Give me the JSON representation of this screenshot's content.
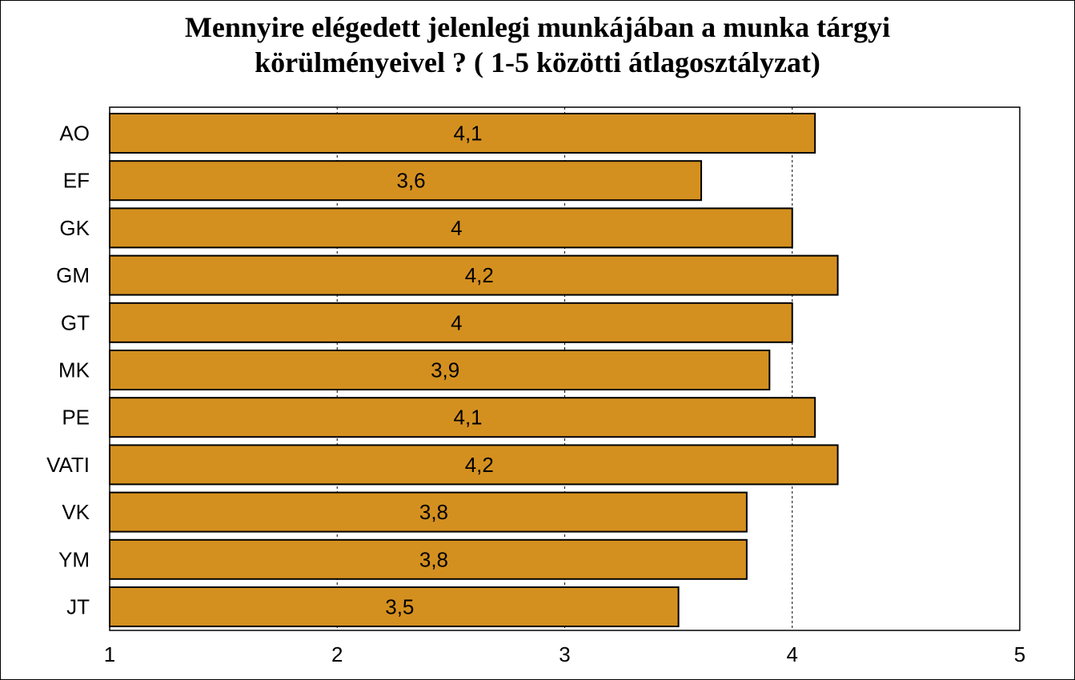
{
  "chart_data": {
    "type": "bar",
    "orientation": "horizontal",
    "title_lines": [
      "Mennyire elégedett jelenlegi munkájában a munka tárgyi",
      "körülményeivel ? ( 1-5 közötti átlagosztályzat)"
    ],
    "categories": [
      "AO",
      "EF",
      "GK",
      "GM",
      "GT",
      "MK",
      "PE",
      "VATI",
      "VK",
      "YM",
      "JT"
    ],
    "values": [
      4.1,
      3.6,
      4.0,
      4.2,
      4.0,
      3.9,
      4.1,
      4.2,
      3.8,
      3.8,
      3.5
    ],
    "data_labels": [
      "4,1",
      "3,6",
      "4",
      "4,2",
      "4",
      "3,9",
      "4,1",
      "4,2",
      "3,8",
      "3,8",
      "3,5"
    ],
    "xlim": [
      1,
      5
    ],
    "xticks": [
      1,
      2,
      3,
      4,
      5
    ],
    "xtick_labels": [
      "1",
      "2",
      "3",
      "4",
      "5"
    ],
    "grid": "vertical dashed",
    "legend": "none",
    "bar_color": "#D4901F",
    "bar_edge_color": "#000000"
  }
}
